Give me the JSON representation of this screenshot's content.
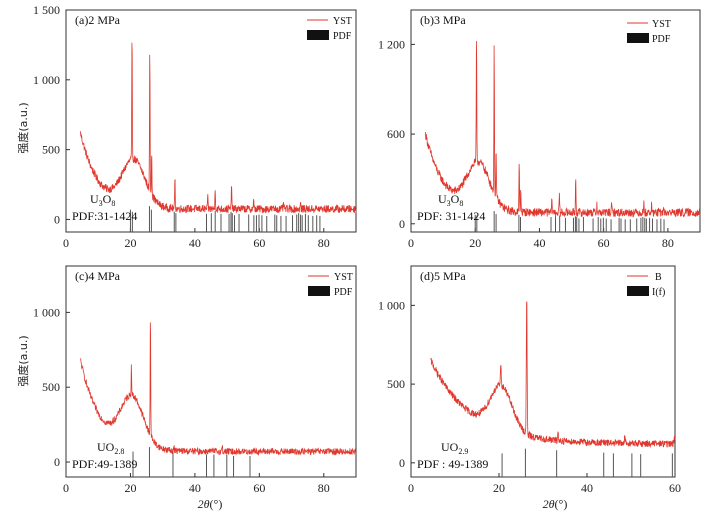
{
  "figure": {
    "y_axis_label": "强度(a.u.)",
    "x_axis_label_main": "2θ",
    "x_axis_label_unit": "(°)"
  },
  "chart_data": [
    {
      "type": "line",
      "title": "(a)2 MPa",
      "xlim": [
        0,
        90
      ],
      "ylim": [
        -90,
        1500
      ],
      "xticks": [
        0,
        20,
        40,
        60,
        80
      ],
      "yticks": [
        0,
        500,
        1000,
        1500
      ],
      "ytick_labels": [
        "0",
        "500",
        "1 000",
        "1 500"
      ],
      "legend": [
        {
          "label": "YST",
          "kind": "line"
        },
        {
          "label": "PDF",
          "kind": "bar"
        }
      ],
      "annotation": {
        "formula_main": "U",
        "formula_sub1": "3",
        "formula_mid": "O",
        "formula_sub2": "8",
        "pdf": "PDF:31-1424"
      },
      "baseline": {
        "base": 620,
        "decay": 0.18,
        "floor": 75,
        "hump_center": 21,
        "hump_height": 330,
        "hump_width": 5,
        "noise": 28
      },
      "peaks": [
        [
          20.5,
          900
        ],
        [
          26.0,
          1050
        ],
        [
          26.6,
          320
        ],
        [
          33.8,
          220
        ],
        [
          44.0,
          80
        ],
        [
          46.3,
          160
        ],
        [
          51.4,
          190
        ],
        [
          58.2,
          60
        ],
        [
          67.5,
          50
        ],
        [
          72.8,
          40
        ]
      ],
      "pdf_lines": [
        [
          20.0,
          70
        ],
        [
          20.6,
          55
        ],
        [
          25.9,
          95
        ],
        [
          26.5,
          70
        ],
        [
          33.6,
          55
        ],
        [
          34.1,
          45
        ],
        [
          43.6,
          40
        ],
        [
          45.1,
          45
        ],
        [
          46.3,
          60
        ],
        [
          48.1,
          40
        ],
        [
          50.6,
          40
        ],
        [
          51.2,
          55
        ],
        [
          51.6,
          45
        ],
        [
          52.3,
          30
        ],
        [
          53.7,
          40
        ],
        [
          56.7,
          35
        ],
        [
          58.3,
          30
        ],
        [
          59.1,
          30
        ],
        [
          59.9,
          35
        ],
        [
          60.8,
          30
        ],
        [
          62.3,
          25
        ],
        [
          64.8,
          35
        ],
        [
          65.4,
          30
        ],
        [
          66.7,
          25
        ],
        [
          68.3,
          25
        ],
        [
          70.3,
          30
        ],
        [
          71.6,
          35
        ],
        [
          72.2,
          45
        ],
        [
          72.8,
          35
        ],
        [
          73.3,
          30
        ],
        [
          74.3,
          40
        ],
        [
          75.2,
          30
        ],
        [
          76.6,
          25
        ],
        [
          77.8,
          30
        ],
        [
          78.8,
          25
        ]
      ]
    },
    {
      "type": "line",
      "title": "(b)3 MPa",
      "xlim": [
        0,
        90
      ],
      "ylim": [
        -55,
        1430
      ],
      "xticks": [
        0,
        20,
        40,
        60,
        80
      ],
      "yticks": [
        0,
        600,
        1200
      ],
      "ytick_labels": [
        "0",
        "600",
        "1 200"
      ],
      "legend": [
        {
          "label": "YST",
          "kind": "line"
        },
        {
          "label": "PDF",
          "kind": "bar"
        }
      ],
      "annotation": {
        "formula_main": "U",
        "formula_sub1": "3",
        "formula_mid": "O",
        "formula_sub2": "8",
        "pdf": "PDF: 31-1424"
      },
      "baseline": {
        "base": 600,
        "decay": 0.17,
        "floor": 75,
        "hump_center": 21,
        "hump_height": 310,
        "hump_width": 5,
        "noise": 28
      },
      "peaks": [
        [
          20.4,
          850
        ],
        [
          25.9,
          1000
        ],
        [
          26.5,
          330
        ],
        [
          33.7,
          330
        ],
        [
          34.2,
          160
        ],
        [
          43.9,
          90
        ],
        [
          46.2,
          130
        ],
        [
          51.3,
          240
        ],
        [
          57.9,
          60
        ],
        [
          62.5,
          50
        ],
        [
          72.5,
          60
        ],
        [
          74.9,
          45
        ],
        [
          78.6,
          40
        ]
      ],
      "pdf_lines": [
        [
          20.0,
          60
        ],
        [
          20.5,
          55
        ],
        [
          25.9,
          85
        ],
        [
          26.5,
          65
        ],
        [
          33.6,
          60
        ],
        [
          34.1,
          45
        ],
        [
          43.6,
          45
        ],
        [
          45.0,
          50
        ],
        [
          46.3,
          55
        ],
        [
          48.1,
          40
        ],
        [
          50.6,
          40
        ],
        [
          51.2,
          50
        ],
        [
          51.6,
          45
        ],
        [
          52.3,
          35
        ],
        [
          53.7,
          45
        ],
        [
          56.7,
          35
        ],
        [
          58.3,
          45
        ],
        [
          59.1,
          35
        ],
        [
          59.9,
          40
        ],
        [
          60.8,
          35
        ],
        [
          62.3,
          30
        ],
        [
          64.8,
          40
        ],
        [
          65.4,
          35
        ],
        [
          66.7,
          30
        ],
        [
          68.3,
          30
        ],
        [
          70.3,
          35
        ],
        [
          71.6,
          40
        ],
        [
          72.2,
          45
        ],
        [
          72.8,
          40
        ],
        [
          73.3,
          35
        ],
        [
          74.3,
          40
        ],
        [
          75.2,
          35
        ],
        [
          76.6,
          30
        ],
        [
          77.8,
          35
        ],
        [
          78.8,
          30
        ]
      ]
    },
    {
      "type": "line",
      "title": "(c)4 MPa",
      "xlim": [
        0,
        90
      ],
      "ylim": [
        -100,
        1310
      ],
      "xticks": [
        0,
        20,
        40,
        60,
        80
      ],
      "yticks": [
        0,
        500,
        1000
      ],
      "ytick_labels": [
        "0",
        "500",
        "1 000"
      ],
      "legend": [
        {
          "label": "YST",
          "kind": "line"
        },
        {
          "label": "PDF",
          "kind": "bar"
        }
      ],
      "annotation": {
        "formula_main": "UO",
        "formula_sub1": "2.8",
        "formula_mid": "",
        "formula_sub2": "",
        "pdf": "PDF:49-1389"
      },
      "baseline": {
        "base": 680,
        "decay": 0.16,
        "floor": 70,
        "hump_center": 20.5,
        "hump_height": 330,
        "hump_width": 5,
        "noise": 22
      },
      "peaks": [
        [
          20.3,
          200
        ],
        [
          26.2,
          850
        ],
        [
          33.5,
          40
        ],
        [
          48.5,
          40
        ],
        [
          58.6,
          25
        ]
      ],
      "pdf_lines": [
        [
          20.8,
          70
        ],
        [
          25.9,
          100
        ],
        [
          33.2,
          70
        ],
        [
          43.6,
          50
        ],
        [
          45.9,
          50
        ],
        [
          49.9,
          50
        ],
        [
          52.0,
          40
        ],
        [
          57.1,
          40
        ]
      ]
    },
    {
      "type": "line",
      "title": "(d)5 MPa",
      "xlim": [
        0,
        60
      ],
      "ylim": [
        -90,
        1250
      ],
      "xticks": [
        0,
        20,
        40,
        60
      ],
      "xtick_labels": [
        "0",
        "20",
        "40",
        "60"
      ],
      "yticks": [
        0,
        500,
        1000
      ],
      "ytick_labels": [
        "0",
        "500",
        "1 000"
      ],
      "legend": [
        {
          "label": "B",
          "kind": "line"
        },
        {
          "label": "I(f)",
          "kind": "bar"
        }
      ],
      "annotation": {
        "formula_main": "UO",
        "formula_sub1": "2.9",
        "formula_mid": "",
        "formula_sub2": "",
        "pdf": "PDF : 49-1389"
      },
      "baseline": {
        "base": 650,
        "decay": 0.11,
        "floor": 120,
        "hump_center": 20.5,
        "hump_height": 280,
        "hump_width": 3.5,
        "noise": 22
      },
      "peaks": [
        [
          20.4,
          150
        ],
        [
          26.3,
          900
        ],
        [
          33.4,
          50
        ],
        [
          48.6,
          50
        ],
        [
          59.9,
          60
        ]
      ],
      "pdf_lines": [
        [
          20.7,
          60
        ],
        [
          26.0,
          90
        ],
        [
          33.1,
          80
        ],
        [
          43.8,
          65
        ],
        [
          46.0,
          60
        ],
        [
          50.2,
          60
        ],
        [
          52.2,
          55
        ],
        [
          59.4,
          60
        ]
      ]
    }
  ]
}
